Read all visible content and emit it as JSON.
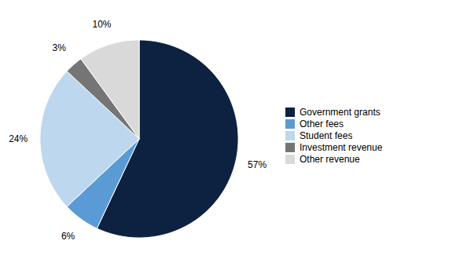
{
  "chart_data": {
    "type": "pie",
    "categories": [
      "Government grants",
      "Other fees",
      "Student fees",
      "Investment revenue",
      "Other revenue"
    ],
    "values": [
      57,
      6,
      24,
      3,
      10
    ],
    "value_labels": [
      "57%",
      "6%",
      "24%",
      "3%",
      "10%"
    ],
    "colors": [
      "#0d2240",
      "#5b9bd5",
      "#bdd7ee",
      "#757575",
      "#d9d9d9"
    ],
    "data_labels": true,
    "legend": "right"
  }
}
